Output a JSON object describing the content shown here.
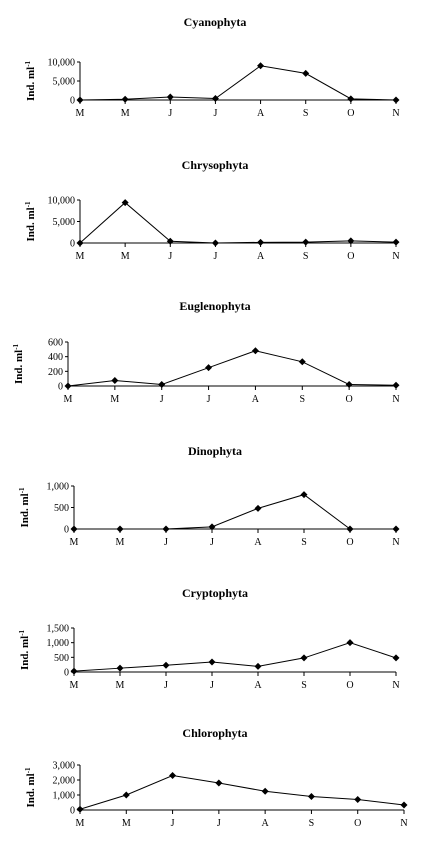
{
  "chart_data": [
    {
      "type": "line",
      "title": "Cyanophyta",
      "ylabel": "Ind. ml",
      "ylabel_sup": "-1",
      "categories": [
        "M",
        "M",
        "J",
        "J",
        "A",
        "S",
        "O",
        "N"
      ],
      "values": [
        0,
        200,
        800,
        400,
        9000,
        7000,
        300,
        0
      ],
      "yticks": [
        "0",
        "5,000",
        "10,000"
      ],
      "ylim": [
        0,
        10000
      ],
      "grid": false
    },
    {
      "type": "line",
      "title": "Chrysophyta",
      "ylabel": "Ind. ml",
      "ylabel_sup": "-1",
      "categories": [
        "M",
        "M",
        "J",
        "J",
        "A",
        "S",
        "O",
        "N"
      ],
      "values": [
        0,
        9400,
        400,
        0,
        150,
        200,
        500,
        200
      ],
      "yticks": [
        "0",
        "5,000",
        "10,000"
      ],
      "ylim": [
        0,
        10000
      ],
      "grid": false
    },
    {
      "type": "line",
      "title": "Euglenophyta",
      "ylabel": "Ind. ml",
      "ylabel_sup": "-1",
      "categories": [
        "M",
        "M",
        "J",
        "J",
        "A",
        "S",
        "O",
        "N"
      ],
      "values": [
        0,
        75,
        20,
        250,
        480,
        330,
        20,
        10
      ],
      "yticks": [
        "0",
        "200",
        "400",
        "600"
      ],
      "ylim": [
        0,
        600
      ],
      "grid": false
    },
    {
      "type": "line",
      "title": "Dinophyta",
      "ylabel": "Ind. ml",
      "ylabel_sup": "-1",
      "categories": [
        "M",
        "M",
        "J",
        "J",
        "A",
        "S",
        "O",
        "N"
      ],
      "values": [
        0,
        0,
        0,
        50,
        480,
        800,
        0,
        0
      ],
      "yticks": [
        "0",
        "500",
        "1,000"
      ],
      "ylim": [
        0,
        1000
      ],
      "grid": false
    },
    {
      "type": "line",
      "title": "Cryptophyta",
      "ylabel": "Ind. ml",
      "ylabel_sup": "-1",
      "categories": [
        "M",
        "M",
        "J",
        "J",
        "A",
        "S",
        "O",
        "N"
      ],
      "values": [
        30,
        130,
        230,
        340,
        190,
        480,
        1000,
        480
      ],
      "yticks": [
        "0",
        "500",
        "1,000",
        "1,500"
      ],
      "ylim": [
        0,
        1500
      ],
      "grid": false
    },
    {
      "type": "line",
      "title": "Chlorophyta",
      "ylabel": "Ind. ml",
      "ylabel_sup": "-1",
      "categories": [
        "M",
        "M",
        "J",
        "J",
        "A",
        "S",
        "O",
        "N"
      ],
      "values": [
        50,
        1000,
        2300,
        1800,
        1250,
        900,
        700,
        330
      ],
      "yticks": [
        "0",
        "1,000",
        "2,000",
        "3,000"
      ],
      "ylim": [
        0,
        3000
      ],
      "grid": false
    }
  ]
}
